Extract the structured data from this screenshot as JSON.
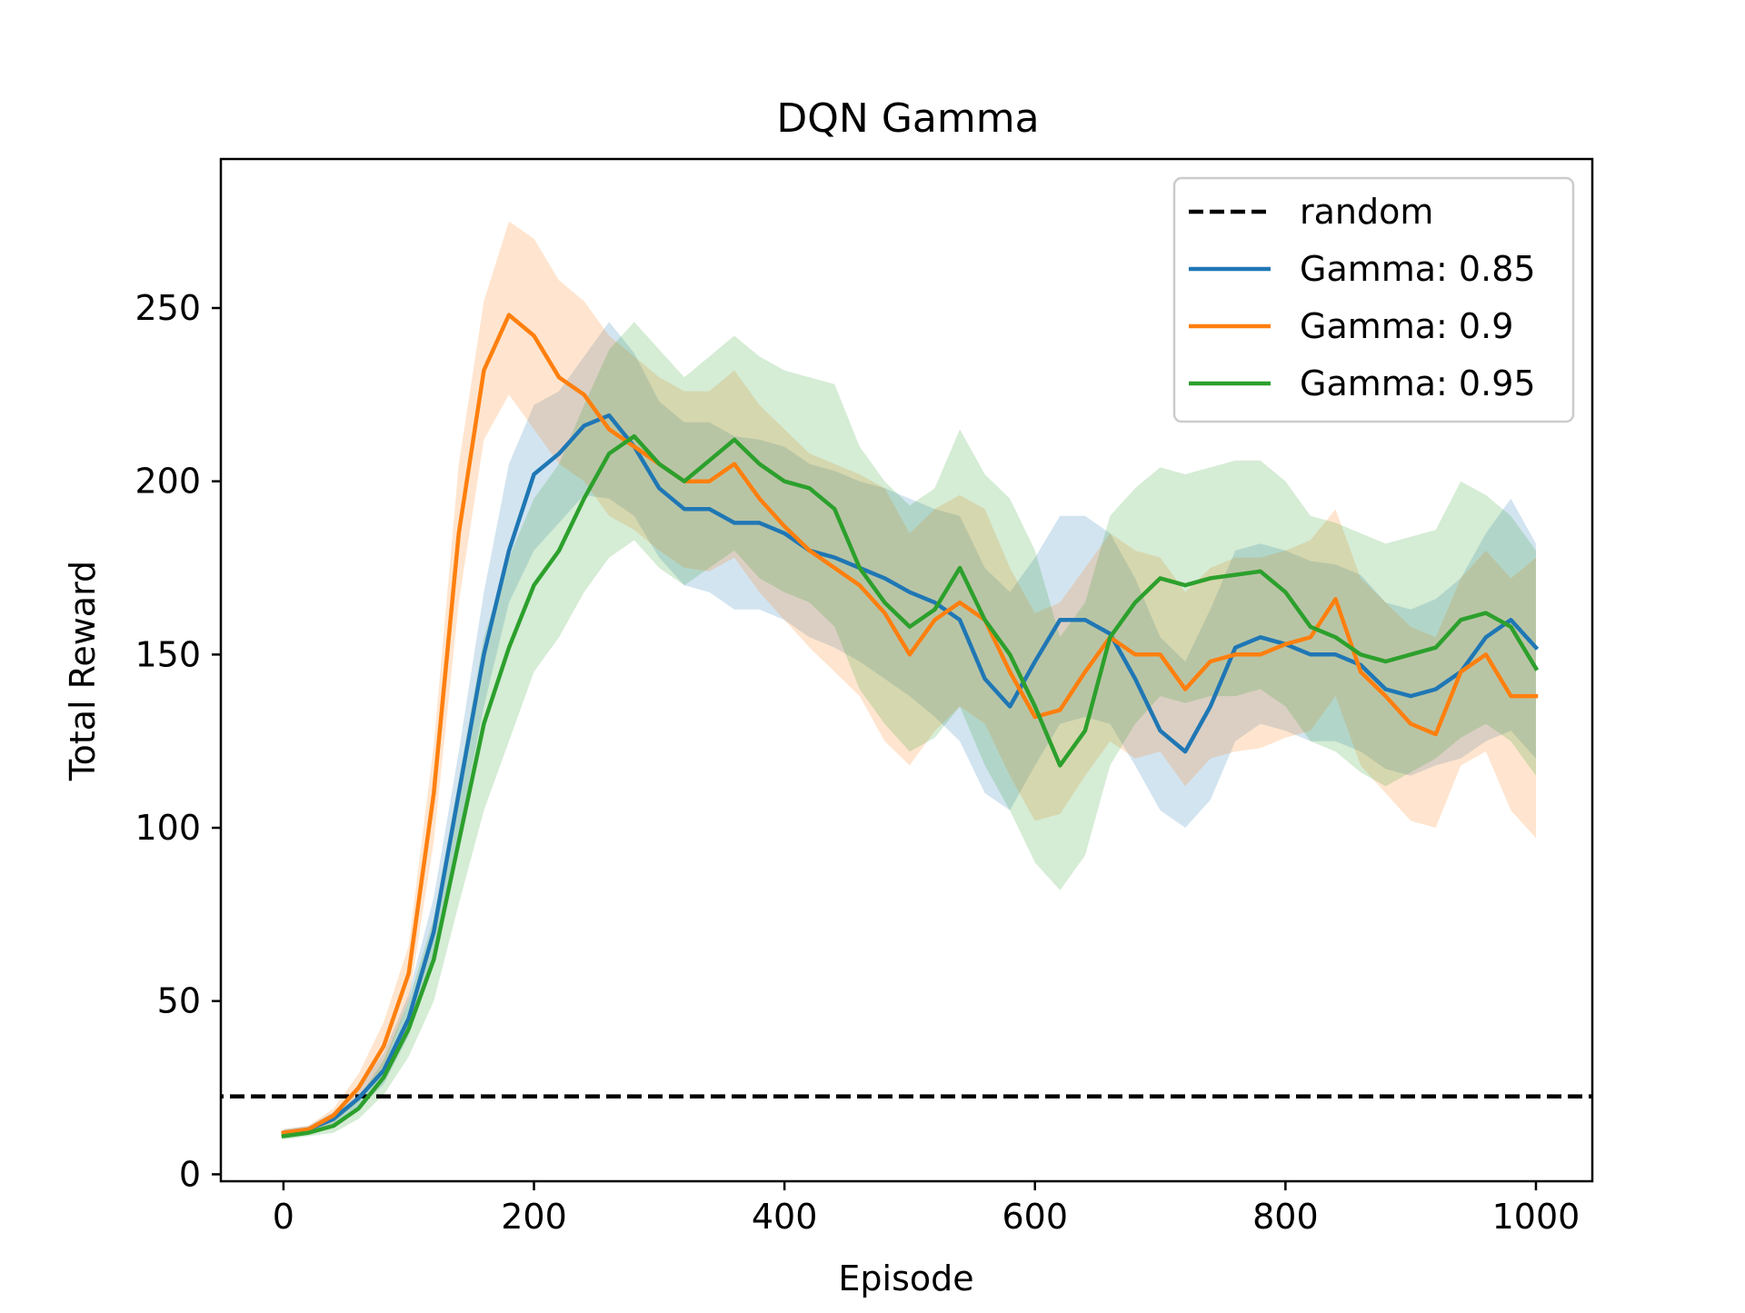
{
  "chart_data": {
    "type": "line",
    "title": "DQN Gamma",
    "xlabel": "Episode",
    "ylabel": "Total Reward",
    "xlim": [
      -50,
      1045
    ],
    "ylim": [
      -2,
      293
    ],
    "xticks": [
      0,
      200,
      400,
      600,
      800,
      1000
    ],
    "yticks": [
      0,
      50,
      100,
      150,
      200,
      250
    ],
    "grid": false,
    "legend_position": "top-right",
    "baseline": {
      "name": "random",
      "value": 22.5,
      "color": "#000000",
      "style": "dashed"
    },
    "series": [
      {
        "name": "Gamma: 0.85",
        "color": "#1f77b4",
        "x": [
          0,
          20,
          40,
          60,
          80,
          100,
          120,
          140,
          160,
          180,
          200,
          220,
          240,
          260,
          280,
          300,
          320,
          340,
          360,
          380,
          400,
          420,
          440,
          460,
          480,
          500,
          520,
          540,
          560,
          580,
          600,
          620,
          640,
          660,
          680,
          700,
          720,
          740,
          760,
          780,
          800,
          820,
          840,
          860,
          880,
          900,
          920,
          940,
          960,
          980,
          1000
        ],
        "mean": [
          12,
          13,
          16,
          22,
          30,
          45,
          70,
          110,
          150,
          180,
          202,
          208,
          216,
          219,
          210,
          198,
          192,
          192,
          188,
          188,
          185,
          180,
          178,
          175,
          172,
          168,
          165,
          160,
          143,
          135,
          148,
          160,
          160,
          156,
          143,
          128,
          122,
          135,
          152,
          155,
          153,
          150,
          150,
          147,
          140,
          138,
          140,
          145,
          155,
          160,
          152
        ],
        "lower": [
          11,
          12,
          14,
          19,
          26,
          40,
          62,
          98,
          135,
          165,
          180,
          188,
          196,
          195,
          190,
          178,
          170,
          168,
          163,
          163,
          160,
          155,
          152,
          148,
          143,
          138,
          132,
          125,
          110,
          105,
          118,
          130,
          132,
          130,
          118,
          105,
          100,
          108,
          125,
          130,
          128,
          125,
          125,
          122,
          117,
          115,
          118,
          120,
          125,
          128,
          120
        ],
        "upper": [
          13,
          14,
          18,
          25,
          35,
          52,
          80,
          122,
          168,
          205,
          222,
          226,
          236,
          246,
          237,
          223,
          217,
          217,
          213,
          212,
          210,
          205,
          203,
          200,
          198,
          195,
          192,
          190,
          175,
          168,
          178,
          190,
          190,
          185,
          172,
          155,
          148,
          163,
          180,
          182,
          180,
          177,
          176,
          173,
          165,
          163,
          166,
          172,
          185,
          195,
          182
        ]
      },
      {
        "name": "Gamma: 0.9",
        "color": "#ff7f0e",
        "x": [
          0,
          20,
          40,
          60,
          80,
          100,
          120,
          140,
          160,
          180,
          200,
          220,
          240,
          260,
          280,
          300,
          320,
          340,
          360,
          380,
          400,
          420,
          440,
          460,
          480,
          500,
          520,
          540,
          560,
          580,
          600,
          620,
          640,
          660,
          680,
          700,
          720,
          740,
          760,
          780,
          800,
          820,
          840,
          860,
          880,
          900,
          920,
          940,
          960,
          980,
          1000
        ],
        "mean": [
          12,
          13,
          17,
          25,
          37,
          58,
          110,
          185,
          232,
          248,
          242,
          230,
          225,
          215,
          210,
          205,
          200,
          200,
          205,
          195,
          187,
          180,
          175,
          170,
          162,
          150,
          160,
          165,
          160,
          145,
          132,
          134,
          145,
          155,
          150,
          150,
          140,
          148,
          150,
          150,
          153,
          155,
          166,
          145,
          138,
          130,
          127,
          145,
          150,
          138,
          138
        ],
        "lower": [
          11,
          12,
          15,
          21,
          31,
          50,
          96,
          165,
          212,
          225,
          215,
          205,
          200,
          190,
          186,
          180,
          175,
          174,
          178,
          168,
          160,
          152,
          145,
          138,
          125,
          118,
          128,
          135,
          130,
          115,
          102,
          104,
          115,
          125,
          120,
          122,
          112,
          120,
          122,
          123,
          126,
          128,
          138,
          118,
          110,
          102,
          100,
          118,
          122,
          105,
          97
        ],
        "upper": [
          13,
          14,
          19,
          29,
          44,
          66,
          124,
          205,
          252,
          275,
          270,
          258,
          252,
          242,
          236,
          230,
          226,
          226,
          232,
          222,
          215,
          208,
          205,
          202,
          198,
          185,
          192,
          196,
          192,
          175,
          162,
          165,
          175,
          185,
          180,
          178,
          168,
          175,
          178,
          178,
          180,
          183,
          192,
          172,
          165,
          158,
          155,
          172,
          180,
          172,
          178
        ]
      },
      {
        "name": "Gamma: 0.95",
        "color": "#2ca02c",
        "x": [
          0,
          20,
          40,
          60,
          80,
          100,
          120,
          140,
          160,
          180,
          200,
          220,
          240,
          260,
          280,
          300,
          320,
          340,
          360,
          380,
          400,
          420,
          440,
          460,
          480,
          500,
          520,
          540,
          560,
          580,
          600,
          620,
          640,
          660,
          680,
          700,
          720,
          740,
          760,
          780,
          800,
          820,
          840,
          860,
          880,
          900,
          920,
          940,
          960,
          980,
          1000
        ],
        "mean": [
          11,
          12,
          14,
          19,
          28,
          42,
          62,
          96,
          130,
          152,
          170,
          180,
          195,
          208,
          213,
          205,
          200,
          206,
          212,
          205,
          200,
          198,
          192,
          175,
          165,
          158,
          163,
          175,
          160,
          150,
          135,
          118,
          128,
          155,
          165,
          172,
          170,
          172,
          173,
          174,
          168,
          158,
          155,
          150,
          148,
          150,
          152,
          160,
          162,
          158,
          146
        ],
        "lower": [
          10,
          11,
          12,
          16,
          23,
          34,
          50,
          78,
          105,
          125,
          145,
          155,
          168,
          178,
          183,
          175,
          170,
          175,
          180,
          172,
          168,
          165,
          158,
          140,
          130,
          122,
          126,
          135,
          118,
          105,
          90,
          82,
          92,
          118,
          130,
          138,
          136,
          138,
          138,
          140,
          135,
          125,
          122,
          116,
          112,
          116,
          120,
          126,
          130,
          125,
          115
        ],
        "upper": [
          12,
          13,
          16,
          22,
          33,
          50,
          74,
          114,
          155,
          178,
          195,
          205,
          222,
          238,
          246,
          238,
          230,
          236,
          242,
          236,
          232,
          230,
          228,
          210,
          200,
          193,
          198,
          215,
          202,
          195,
          180,
          155,
          165,
          190,
          198,
          204,
          202,
          204,
          206,
          206,
          200,
          190,
          188,
          185,
          182,
          184,
          186,
          200,
          196,
          190,
          180
        ]
      }
    ]
  }
}
